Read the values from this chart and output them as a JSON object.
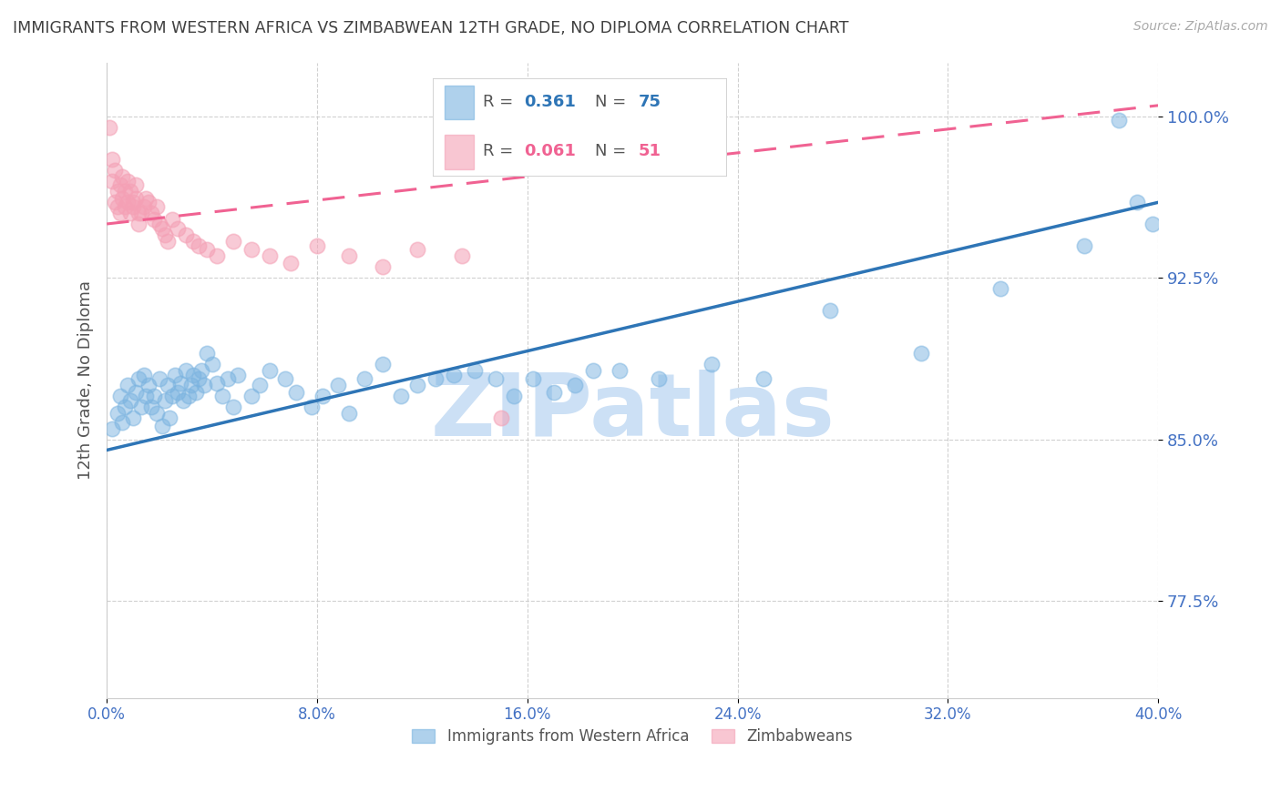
{
  "title": "IMMIGRANTS FROM WESTERN AFRICA VS ZIMBABWEAN 12TH GRADE, NO DIPLOMA CORRELATION CHART",
  "source": "Source: ZipAtlas.com",
  "ylabel": "12th Grade, No Diploma",
  "y_tick_labels": [
    "77.5%",
    "85.0%",
    "92.5%",
    "100.0%"
  ],
  "y_tick_values": [
    0.775,
    0.85,
    0.925,
    1.0
  ],
  "x_tick_labels": [
    "0.0%",
    "8.0%",
    "16.0%",
    "24.0%",
    "32.0%",
    "40.0%"
  ],
  "x_tick_values": [
    0.0,
    0.08,
    0.16,
    0.24,
    0.32,
    0.4
  ],
  "x_min": 0.0,
  "x_max": 0.4,
  "y_min": 0.73,
  "y_max": 1.025,
  "blue_label": "Immigrants from Western Africa",
  "blue_R": "0.361",
  "blue_N": "75",
  "pink_label": "Zimbabweans",
  "pink_R": "0.061",
  "pink_N": "51",
  "watermark": "ZIPatlas",
  "watermark_color": "#cce0f5",
  "blue_color": "#7ab3e0",
  "pink_color": "#f4a0b5",
  "blue_line_color": "#2e75b6",
  "pink_line_color": "#f06292",
  "axis_label_color": "#4472c4",
  "title_color": "#404040",
  "grid_color": "#cccccc",
  "blue_line_x0": 0.0,
  "blue_line_y0": 0.845,
  "blue_line_x1": 0.4,
  "blue_line_y1": 0.96,
  "pink_line_x0": 0.0,
  "pink_line_y0": 0.95,
  "pink_line_x1": 0.4,
  "pink_line_y1": 1.005,
  "blue_scatter_x": [
    0.002,
    0.004,
    0.005,
    0.006,
    0.007,
    0.008,
    0.009,
    0.01,
    0.011,
    0.012,
    0.013,
    0.014,
    0.015,
    0.016,
    0.017,
    0.018,
    0.019,
    0.02,
    0.021,
    0.022,
    0.023,
    0.024,
    0.025,
    0.026,
    0.027,
    0.028,
    0.029,
    0.03,
    0.031,
    0.032,
    0.033,
    0.034,
    0.035,
    0.036,
    0.037,
    0.038,
    0.04,
    0.042,
    0.044,
    0.046,
    0.048,
    0.05,
    0.055,
    0.058,
    0.062,
    0.068,
    0.072,
    0.078,
    0.082,
    0.088,
    0.092,
    0.098,
    0.105,
    0.112,
    0.118,
    0.125,
    0.132,
    0.14,
    0.148,
    0.155,
    0.162,
    0.17,
    0.178,
    0.185,
    0.195,
    0.21,
    0.23,
    0.25,
    0.275,
    0.31,
    0.34,
    0.372,
    0.385,
    0.392,
    0.398
  ],
  "blue_scatter_y": [
    0.855,
    0.862,
    0.87,
    0.858,
    0.865,
    0.875,
    0.868,
    0.86,
    0.872,
    0.878,
    0.865,
    0.88,
    0.87,
    0.875,
    0.865,
    0.87,
    0.862,
    0.878,
    0.856,
    0.868,
    0.875,
    0.86,
    0.87,
    0.88,
    0.872,
    0.876,
    0.868,
    0.882,
    0.87,
    0.875,
    0.88,
    0.872,
    0.878,
    0.882,
    0.875,
    0.89,
    0.885,
    0.876,
    0.87,
    0.878,
    0.865,
    0.88,
    0.87,
    0.875,
    0.882,
    0.878,
    0.872,
    0.865,
    0.87,
    0.875,
    0.862,
    0.878,
    0.885,
    0.87,
    0.875,
    0.878,
    0.88,
    0.882,
    0.878,
    0.87,
    0.878,
    0.872,
    0.875,
    0.882,
    0.882,
    0.878,
    0.885,
    0.878,
    0.91,
    0.89,
    0.92,
    0.94,
    0.998,
    0.96,
    0.95
  ],
  "pink_scatter_x": [
    0.001,
    0.002,
    0.002,
    0.003,
    0.003,
    0.004,
    0.004,
    0.005,
    0.005,
    0.006,
    0.006,
    0.007,
    0.007,
    0.008,
    0.008,
    0.009,
    0.009,
    0.01,
    0.01,
    0.011,
    0.011,
    0.012,
    0.012,
    0.013,
    0.014,
    0.015,
    0.016,
    0.017,
    0.018,
    0.019,
    0.02,
    0.021,
    0.022,
    0.023,
    0.025,
    0.027,
    0.03,
    0.033,
    0.035,
    0.038,
    0.042,
    0.048,
    0.055,
    0.062,
    0.07,
    0.08,
    0.092,
    0.105,
    0.118,
    0.135,
    0.15
  ],
  "pink_scatter_y": [
    0.995,
    0.97,
    0.98,
    0.96,
    0.975,
    0.965,
    0.958,
    0.968,
    0.955,
    0.962,
    0.972,
    0.958,
    0.965,
    0.96,
    0.97,
    0.955,
    0.965,
    0.96,
    0.958,
    0.962,
    0.968,
    0.955,
    0.95,
    0.955,
    0.958,
    0.962,
    0.96,
    0.955,
    0.952,
    0.958,
    0.95,
    0.948,
    0.945,
    0.942,
    0.952,
    0.948,
    0.945,
    0.942,
    0.94,
    0.938,
    0.935,
    0.942,
    0.938,
    0.935,
    0.932,
    0.94,
    0.935,
    0.93,
    0.938,
    0.935,
    0.86
  ]
}
